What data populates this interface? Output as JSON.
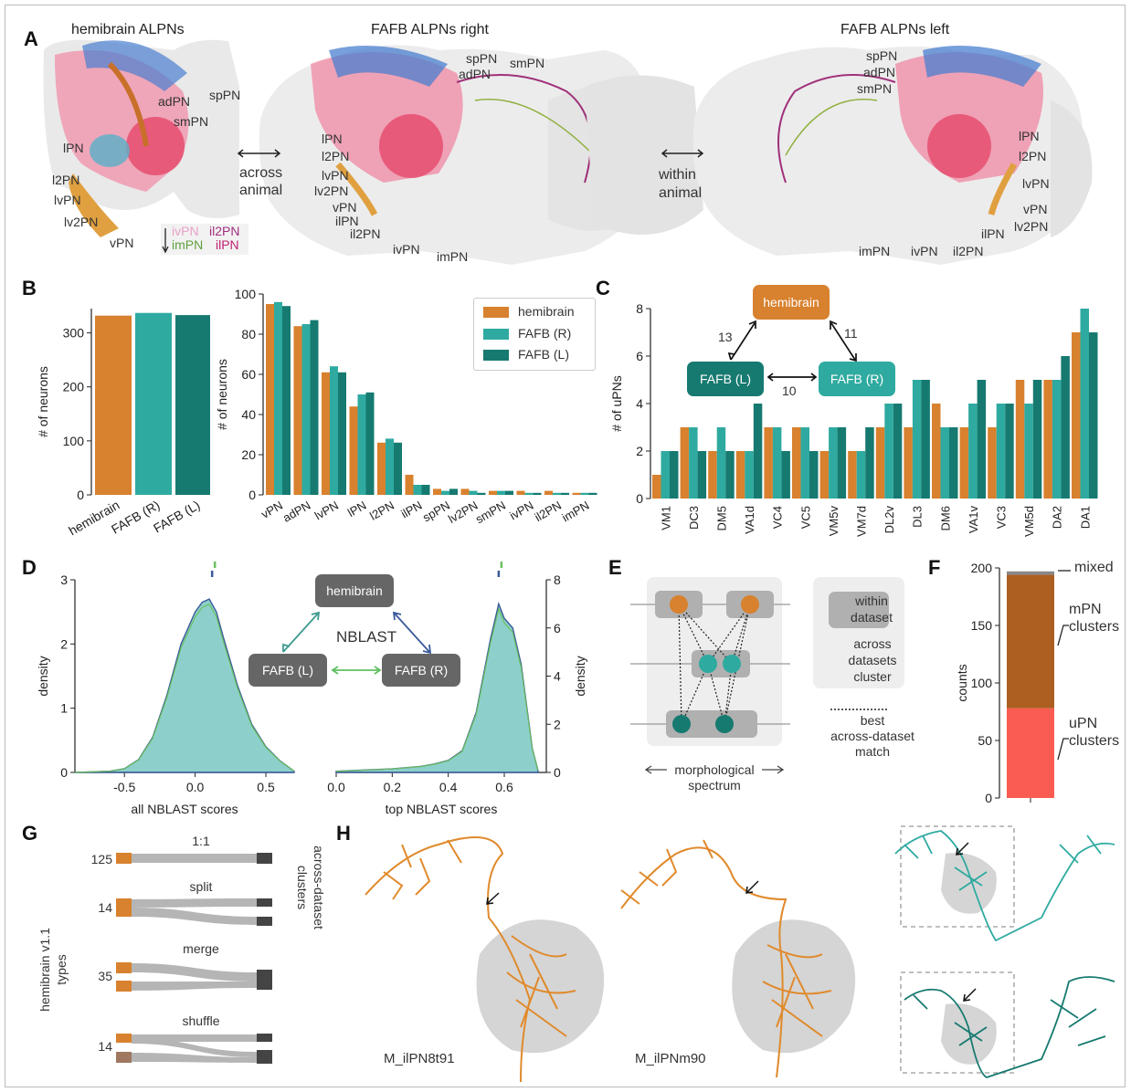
{
  "panels": {
    "A": "A",
    "B": "B",
    "C": "C",
    "D": "D",
    "E": "E",
    "F": "F",
    "G": "G",
    "H": "H"
  },
  "colors": {
    "hemibrain": "#d8812e",
    "fafb_r": "#2faaa0",
    "fafb_l": "#167a70",
    "dataset_box": "#666666",
    "mpn": "#ad5f22",
    "upn": "#fb5c52",
    "mixed": "#888888"
  },
  "panel_a": {
    "titles": [
      "hemibrain ALPNs",
      "FAFB ALPNs right",
      "FAFB ALPNs left"
    ],
    "hemibrain_labels": [
      "adPN",
      "spPN",
      "smPN",
      "lPN",
      "l2PN",
      "lvPN",
      "lv2PN",
      "vPN"
    ],
    "inset_labels": [
      "ivPN",
      "il2PN",
      "imPN",
      "ilPN"
    ],
    "right_labels": [
      "spPN",
      "adPN",
      "smPN",
      "lPN",
      "l2PN",
      "lvPN",
      "lv2PN",
      "vPN",
      "ilPN",
      "il2PN",
      "ivPN",
      "imPN"
    ],
    "left_labels": [
      "spPN",
      "adPN",
      "smPN",
      "lPN",
      "l2PN",
      "lvPN",
      "vPN",
      "lv2PN",
      "ilPN",
      "imPN",
      "ivPN",
      "il2PN"
    ],
    "across_label": [
      "across",
      "animal"
    ],
    "within_label": [
      "within",
      "animal"
    ]
  },
  "legend": {
    "entries": [
      "hemibrain",
      "FAFB (R)",
      "FAFB (L)"
    ]
  },
  "chart_data": [
    {
      "id": "B_total",
      "type": "bar",
      "categories": [
        "hemibrain",
        "FAFB (R)",
        "FAFB (L)"
      ],
      "values": [
        332,
        337,
        333
      ],
      "ylabel": "# of neurons",
      "yticks": [
        0,
        100,
        200,
        300
      ],
      "ylim": [
        0,
        345
      ]
    },
    {
      "id": "B_types",
      "type": "bar",
      "categories": [
        "vPN",
        "adPN",
        "lvPN",
        "lPN",
        "l2PN",
        "ilPN",
        "spPN",
        "lv2PN",
        "smPN",
        "ivPN",
        "il2PN",
        "imPN"
      ],
      "series": [
        {
          "name": "hemibrain",
          "values": [
            95,
            84,
            61,
            44,
            26,
            10,
            3,
            3,
            2,
            2,
            2,
            1
          ]
        },
        {
          "name": "FAFB (R)",
          "values": [
            96,
            85,
            64,
            50,
            28,
            5,
            2,
            2,
            2,
            1,
            1,
            1
          ]
        },
        {
          "name": "FAFB (L)",
          "values": [
            94,
            87,
            61,
            51,
            26,
            5,
            3,
            1,
            2,
            1,
            1,
            1
          ]
        }
      ],
      "ylabel": "# of neurons",
      "yticks": [
        0,
        20,
        40,
        60,
        80,
        100
      ],
      "ylim": [
        0,
        100
      ],
      "legend": "top-right"
    },
    {
      "id": "C",
      "type": "bar",
      "categories": [
        "VM1",
        "DC3",
        "DM5",
        "VA1d",
        "VC4",
        "VC5",
        "VM5v",
        "VM7d",
        "DL2v",
        "DL3",
        "DM6",
        "VA1v",
        "VC3",
        "VM5d",
        "DA2",
        "DA1"
      ],
      "series": [
        {
          "name": "hemibrain",
          "values": [
            1,
            3,
            2,
            2,
            3,
            3,
            2,
            2,
            3,
            3,
            4,
            3,
            3,
            5,
            5,
            7
          ]
        },
        {
          "name": "FAFB (R)",
          "values": [
            2,
            3,
            3,
            2,
            3,
            3,
            3,
            2,
            4,
            5,
            3,
            4,
            4,
            4,
            5,
            8
          ]
        },
        {
          "name": "FAFB (L)",
          "values": [
            2,
            2,
            2,
            4,
            2,
            2,
            3,
            3,
            4,
            5,
            3,
            5,
            4,
            5,
            6,
            7
          ]
        }
      ],
      "ylabel": "# of uPNs",
      "yticks": [
        0,
        2,
        4,
        6,
        8
      ],
      "ylim": [
        0,
        8
      ]
    },
    {
      "id": "D_all",
      "type": "area",
      "xlabel": "all NBLAST scores",
      "ylabel": "density",
      "xlim": [
        -0.85,
        0.7
      ],
      "ylim": [
        0,
        3
      ],
      "xticks": [
        -0.5,
        0.0,
        0.5
      ],
      "yticks": [
        0,
        1,
        2,
        3
      ],
      "x": [
        -0.85,
        -0.6,
        -0.5,
        -0.4,
        -0.3,
        -0.2,
        -0.1,
        0.0,
        0.05,
        0.1,
        0.15,
        0.2,
        0.3,
        0.4,
        0.5,
        0.6,
        0.7
      ],
      "series": [
        {
          "name": "FAFB (R)",
          "values": [
            0,
            0.02,
            0.06,
            0.2,
            0.55,
            1.2,
            2.0,
            2.5,
            2.65,
            2.7,
            2.5,
            2.1,
            1.35,
            0.75,
            0.4,
            0.18,
            0.02
          ]
        }
      ]
    },
    {
      "id": "D_top",
      "type": "area",
      "xlabel": "top NBLAST scores",
      "ylabel": "density",
      "xlim": [
        0,
        0.75
      ],
      "ylim": [
        0,
        8
      ],
      "xticks": [
        0.0,
        0.2,
        0.4,
        0.6
      ],
      "yticks": [
        0,
        2,
        4,
        6,
        8
      ],
      "x": [
        0.0,
        0.1,
        0.2,
        0.3,
        0.35,
        0.4,
        0.45,
        0.5,
        0.55,
        0.58,
        0.6,
        0.63,
        0.66,
        0.7,
        0.72
      ],
      "series": [
        {
          "name": "FAFB (R)",
          "values": [
            0.05,
            0.1,
            0.15,
            0.25,
            0.35,
            0.5,
            0.9,
            2.5,
            5.5,
            7.0,
            6.4,
            6.0,
            4.5,
            1.0,
            0.1
          ]
        }
      ]
    },
    {
      "id": "F",
      "type": "bar",
      "categories": [
        "clusters"
      ],
      "series": [
        {
          "name": "uPN clusters",
          "values": [
            78
          ]
        },
        {
          "name": "mPN clusters",
          "values": [
            116
          ]
        },
        {
          "name": "mixed",
          "values": [
            3
          ]
        }
      ],
      "ylabel": "counts",
      "yticks": [
        0,
        50,
        100,
        150,
        200
      ],
      "ylim": [
        0,
        200
      ]
    }
  ],
  "panel_c": {
    "nodes": [
      "hemibrain",
      "FAFB (L)",
      "FAFB (R)"
    ],
    "edges": [
      "13",
      "11",
      "10"
    ]
  },
  "panel_d": {
    "nodes": [
      "hemibrain",
      "FAFB (L)",
      "FAFB (R)"
    ],
    "center_label": "NBLAST"
  },
  "panel_e": {
    "within_label": [
      "within",
      "dataset"
    ],
    "across_label": [
      "across",
      "datasets",
      "cluster"
    ],
    "match_label": [
      "best",
      "across-dataset",
      "match"
    ],
    "axis_label": [
      "morphological",
      "spectrum"
    ]
  },
  "panel_f": {
    "labels": [
      "mixed",
      "mPN clusters",
      "uPN clusters"
    ]
  },
  "panel_g": {
    "left_axis": [
      "hemibrain v1.1",
      "types"
    ],
    "right_axis": [
      "across-dataset",
      "clusters"
    ],
    "rows": [
      {
        "label": "1:1",
        "count": "125"
      },
      {
        "label": "split",
        "count": "14"
      },
      {
        "label": "merge",
        "count": "35"
      },
      {
        "label": "shuffle",
        "count": "14"
      }
    ]
  },
  "panel_h": {
    "names": [
      "M_ilPN8t91",
      "M_ilPNm90"
    ]
  }
}
